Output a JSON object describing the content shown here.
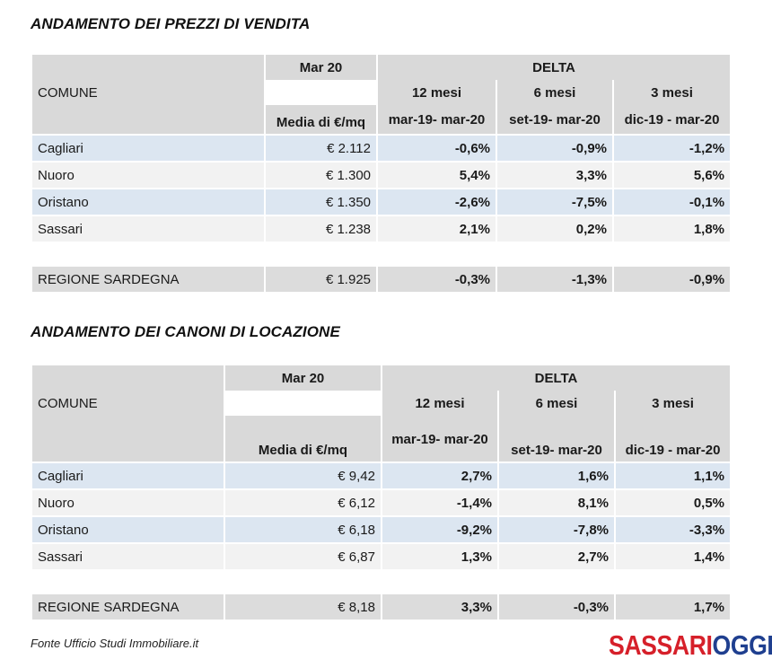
{
  "sections": [
    {
      "title": "ANDAMENTO DEI PREZZI DI VENDITA",
      "header": {
        "period": "Mar 20",
        "delta": "DELTA",
        "comune": "COMUNE",
        "m12": "12 mesi",
        "m6": "6 mesi",
        "m3": "3 mesi",
        "media": "Media di €/mq",
        "r12": "mar-19- mar-20",
        "r6": "set-19- mar-20",
        "r3": "dic-19 - mar-20"
      },
      "rows": [
        {
          "name": "Cagliari",
          "value": "€ 2.112",
          "d12": "-0,6%",
          "d6": "-0,9%",
          "d3": "-1,2%"
        },
        {
          "name": "Nuoro",
          "value": "€ 1.300",
          "d12": "5,4%",
          "d6": "3,3%",
          "d3": "5,6%"
        },
        {
          "name": "Oristano",
          "value": "€ 1.350",
          "d12": "-2,6%",
          "d6": "-7,5%",
          "d3": "-0,1%"
        },
        {
          "name": "Sassari",
          "value": "€ 1.238",
          "d12": "2,1%",
          "d6": "0,2%",
          "d3": "1,8%"
        }
      ],
      "region": {
        "name": "REGIONE SARDEGNA",
        "value": "€ 1.925",
        "d12": "-0,3%",
        "d6": "-1,3%",
        "d3": "-0,9%"
      }
    },
    {
      "title": "ANDAMENTO DEI CANONI DI LOCAZIONE",
      "header": {
        "period": "Mar 20",
        "delta": "DELTA",
        "comune": "COMUNE",
        "m12": "12 mesi",
        "m6": "6 mesi",
        "m3": "3 mesi",
        "media": "Media di €/mq",
        "r12": "mar-19- mar-20",
        "r6": "set-19- mar-20",
        "r3": "dic-19 - mar-20"
      },
      "rows": [
        {
          "name": "Cagliari",
          "value": "€ 9,42",
          "d12": "2,7%",
          "d6": "1,6%",
          "d3": "1,1%"
        },
        {
          "name": "Nuoro",
          "value": "€ 6,12",
          "d12": "-1,4%",
          "d6": "8,1%",
          "d3": "0,5%"
        },
        {
          "name": "Oristano",
          "value": "€ 6,18",
          "d12": "-9,2%",
          "d6": "-7,8%",
          "d3": "-3,3%"
        },
        {
          "name": "Sassari",
          "value": "€ 6,87",
          "d12": "1,3%",
          "d6": "2,7%",
          "d3": "1,4%"
        }
      ],
      "region": {
        "name": "REGIONE SARDEGNA",
        "value": "€ 8,18",
        "d12": "3,3%",
        "d6": "-0,3%",
        "d3": "1,7%"
      }
    }
  ],
  "footer": {
    "source": "Fonte Ufficio Studi Immobiliare.it",
    "logo_part1": "SASSARI",
    "logo_part2": "OGGI.IT"
  },
  "colors": {
    "header_gray": "#d9d9d9",
    "row_blue": "#dce6f1",
    "row_gray": "#f2f2f2",
    "logo_red": "#d6202a",
    "logo_blue": "#1f3f8f"
  }
}
